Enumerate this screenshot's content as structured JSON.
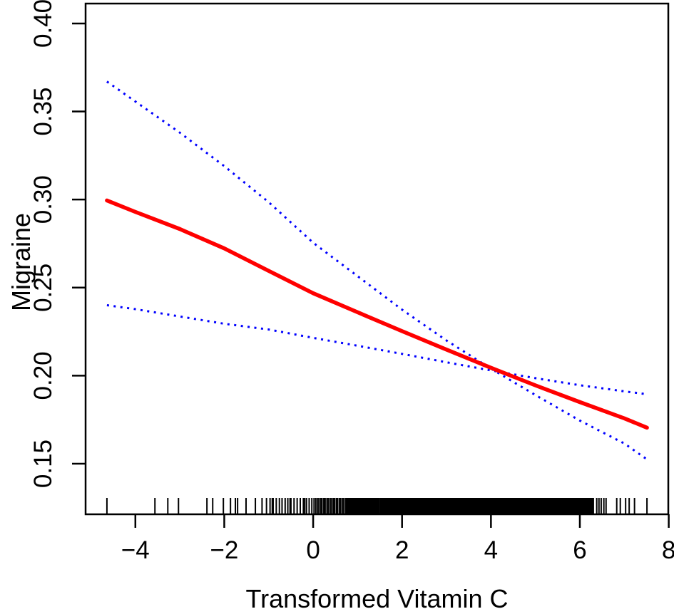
{
  "figure": {
    "background": "#ffffff",
    "axis_color": "#000000"
  },
  "chart_data": {
    "type": "line",
    "title": "",
    "xlabel": "Transformed Vitamin C",
    "ylabel": "Migraine",
    "xlim": [
      -5.12,
      7.99
    ],
    "ylim": [
      0.1213,
      0.4113
    ],
    "x_ticks": [
      -4,
      -2,
      0,
      2,
      4,
      6,
      8
    ],
    "y_ticks": [
      0.15,
      0.2,
      0.25,
      0.3,
      0.35,
      0.4
    ],
    "grid": false,
    "legend": "none",
    "series": [
      {
        "name": "ci-upper",
        "color": "#0000ff",
        "style": "dotted",
        "width": 3,
        "points": [
          [
            -4.64,
            0.367
          ],
          [
            -4,
            0.3557
          ],
          [
            -3,
            0.338
          ],
          [
            -2,
            0.319
          ],
          [
            -1,
            0.2985
          ],
          [
            0,
            0.2755
          ],
          [
            1,
            0.2565
          ],
          [
            2,
            0.2375
          ],
          [
            3,
            0.22
          ],
          [
            4,
            0.204
          ],
          [
            5,
            0.189
          ],
          [
            6,
            0.1745
          ],
          [
            7,
            0.1615
          ],
          [
            7.51,
            0.1525
          ]
        ]
      },
      {
        "name": "ci-lower",
        "color": "#0000ff",
        "style": "dotted",
        "width": 3,
        "points": [
          [
            -4.64,
            0.24
          ],
          [
            -4,
            0.2378
          ],
          [
            -3,
            0.2336
          ],
          [
            -2,
            0.2295
          ],
          [
            -1,
            0.2262
          ],
          [
            0,
            0.2215
          ],
          [
            1,
            0.217
          ],
          [
            2,
            0.2124
          ],
          [
            3,
            0.2076
          ],
          [
            4,
            0.203
          ],
          [
            5,
            0.1986
          ],
          [
            6,
            0.1946
          ],
          [
            7,
            0.1911
          ],
          [
            7.51,
            0.1895
          ]
        ]
      },
      {
        "name": "fitted",
        "color": "#ff0000",
        "style": "solid",
        "width": 5.5,
        "points": [
          [
            -4.64,
            0.2995
          ],
          [
            -4,
            0.293
          ],
          [
            -3,
            0.2833
          ],
          [
            -2,
            0.2723
          ],
          [
            -1,
            0.2595
          ],
          [
            0,
            0.2468
          ],
          [
            1,
            0.236
          ],
          [
            2,
            0.2253
          ],
          [
            3,
            0.2148
          ],
          [
            4,
            0.2045
          ],
          [
            5,
            0.1945
          ],
          [
            6,
            0.185
          ],
          [
            7,
            0.1758
          ],
          [
            7.51,
            0.1705
          ]
        ]
      }
    ],
    "rug": {
      "color": "#000000",
      "ticks": [
        -4.64,
        -3.56,
        -3.27,
        -3.03,
        -2.39,
        -2.26,
        -2.02,
        -1.86,
        -1.75,
        -1.7,
        -1.51,
        -1.3,
        -1.15,
        -1.05,
        -0.97,
        -0.92,
        -0.9,
        -0.83,
        -0.76,
        -0.7,
        -0.63,
        -0.57,
        -0.52,
        -0.5,
        -0.43,
        -0.36,
        -0.29,
        -0.22,
        -0.19,
        -0.15,
        -0.09,
        -0.03,
        0.02,
        0.06,
        0.1,
        0.13,
        0.17,
        0.2,
        0.24,
        0.27,
        0.31,
        0.34,
        0.38,
        0.41,
        0.45,
        0.48,
        0.52,
        0.55,
        0.59,
        0.62,
        0.66,
        0.69,
        0.73,
        0.76,
        0.785,
        0.81,
        0.835,
        0.86,
        0.885,
        0.91,
        0.935,
        0.96,
        0.985,
        1.01,
        1.035,
        1.06,
        1.085,
        1.11,
        1.135,
        1.16,
        1.185,
        1.21,
        1.235,
        1.26,
        1.285,
        1.31,
        1.335,
        1.36,
        1.385,
        1.41,
        1.435,
        1.46,
        1.485,
        6.38,
        6.43,
        6.48,
        6.54,
        6.59,
        6.83,
        6.91,
        7.03,
        7.11,
        7.23,
        7.51
      ],
      "dense_band": {
        "from": 1.5,
        "to": 6.32
      }
    }
  }
}
